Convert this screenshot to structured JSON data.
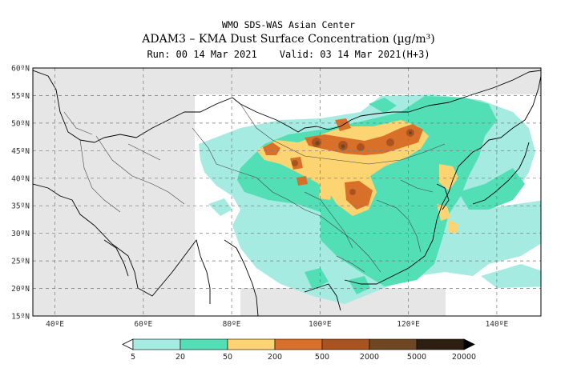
{
  "header": {
    "center": "WMO SDS-WAS Asian Center",
    "model_title": "ADAM3 – KMA Dust Surface Concentration",
    "unit": "(µg/m³)",
    "run_label": "Run: 00 14 Mar 2021",
    "valid_label": "Valid: 03 14 Mar 2021(H+3)"
  },
  "map": {
    "lon_range": [
      35,
      150
    ],
    "lat_range": [
      15,
      60
    ],
    "lat_ticks": [
      "60ºN",
      "55ºN",
      "50ºN",
      "45ºN",
      "40ºN",
      "35ºN",
      "30ºN",
      "25ºN",
      "20ºN",
      "15ºN"
    ],
    "lon_ticks": [
      "40ºE",
      "60ºE",
      "80ºE",
      "100ºE",
      "120ºE",
      "140ºE"
    ],
    "grid": true,
    "land_color": "#e6e6e6",
    "no_data_color": "#ffffff"
  },
  "legend": {
    "levels": [
      "5",
      "20",
      "50",
      "200",
      "500",
      "2000",
      "5000",
      "20000"
    ],
    "colors": [
      "#a6ebe1",
      "#52dfb6",
      "#fcd471",
      "#d9702a",
      "#a95420",
      "#6e4722",
      "#2c1e11"
    ]
  }
}
